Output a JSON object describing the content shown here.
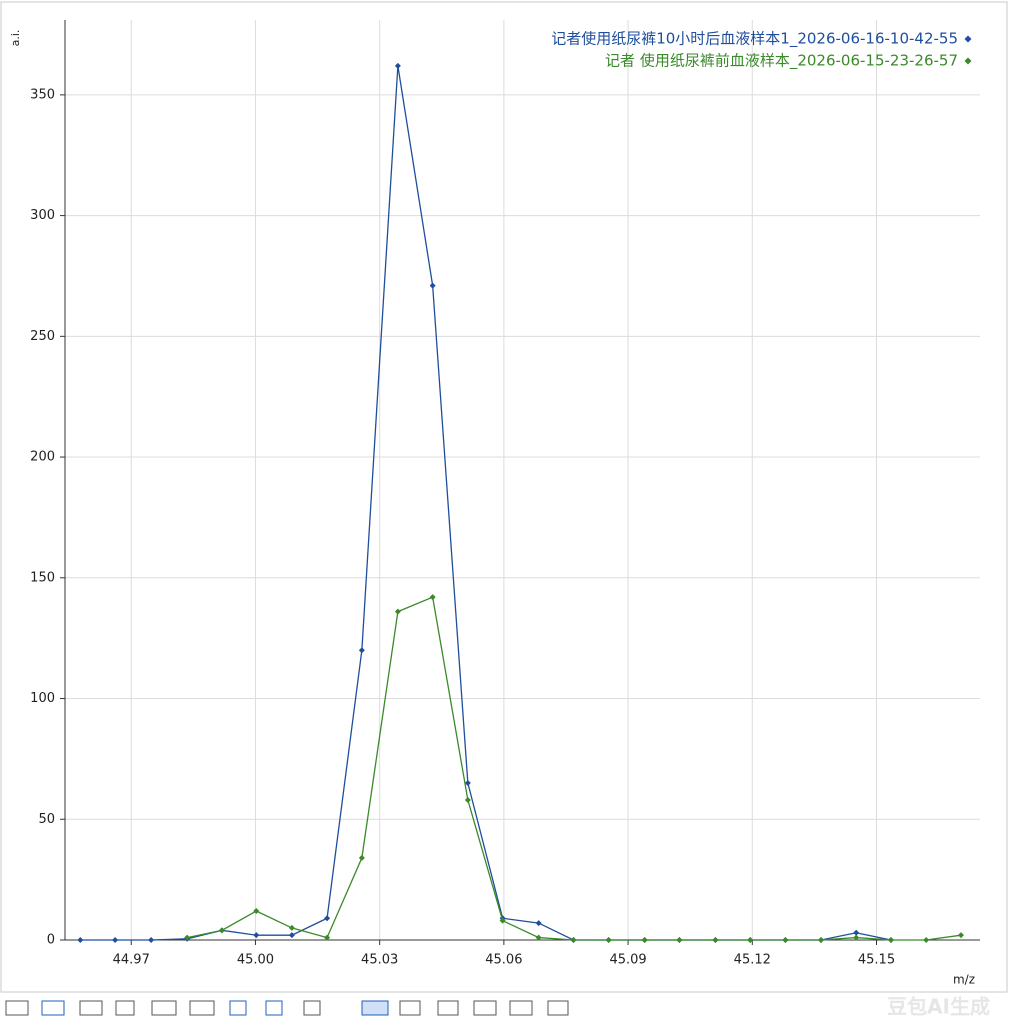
{
  "chart_data": {
    "type": "line",
    "y_label": "a.i.",
    "x_label": "m/z",
    "x": [
      44.9577,
      44.9661,
      44.9748,
      44.9835,
      44.9919,
      45.0002,
      45.0088,
      45.0173,
      45.0257,
      45.0344,
      45.0428,
      45.0513,
      45.0597,
      45.0684,
      45.0768,
      45.0853,
      45.094,
      45.1024,
      45.1111,
      45.1195,
      45.128,
      45.1366,
      45.1451,
      45.1535,
      45.162,
      45.1704
    ],
    "series": [
      {
        "name": "记者使用纸尿裤10小时后血液样本1_2026-06-16-10-42-55",
        "color": "#1f4e9c",
        "values": [
          0,
          0,
          0,
          0.5,
          4,
          2,
          2,
          9,
          120,
          362,
          271,
          65,
          9,
          7,
          0,
          0,
          0,
          0,
          0,
          0,
          0,
          0,
          3,
          0,
          null,
          null
        ]
      },
      {
        "name": "记者 使用纸尿裤前血液样本_2026-06-15-23-26-57",
        "color": "#3a8a2a",
        "values": [
          null,
          null,
          null,
          1,
          4,
          12,
          5,
          1,
          34,
          136,
          142,
          58,
          8,
          1,
          0,
          0,
          0,
          0,
          0,
          0,
          0,
          0,
          1,
          0,
          0,
          2
        ]
      }
    ],
    "xlim": [
      44.954,
      45.175
    ],
    "ylim": [
      0,
      381
    ],
    "xticks": [
      44.97,
      {
        "value": 45,
        "label": "45.00"
      },
      45.03,
      45.06,
      45.09,
      45.12,
      45.15
    ],
    "yticks": [
      0,
      50,
      100,
      150,
      200,
      250,
      300,
      350
    ],
    "grid": true,
    "legend": "top-right"
  },
  "watermark": "豆包AI生成"
}
